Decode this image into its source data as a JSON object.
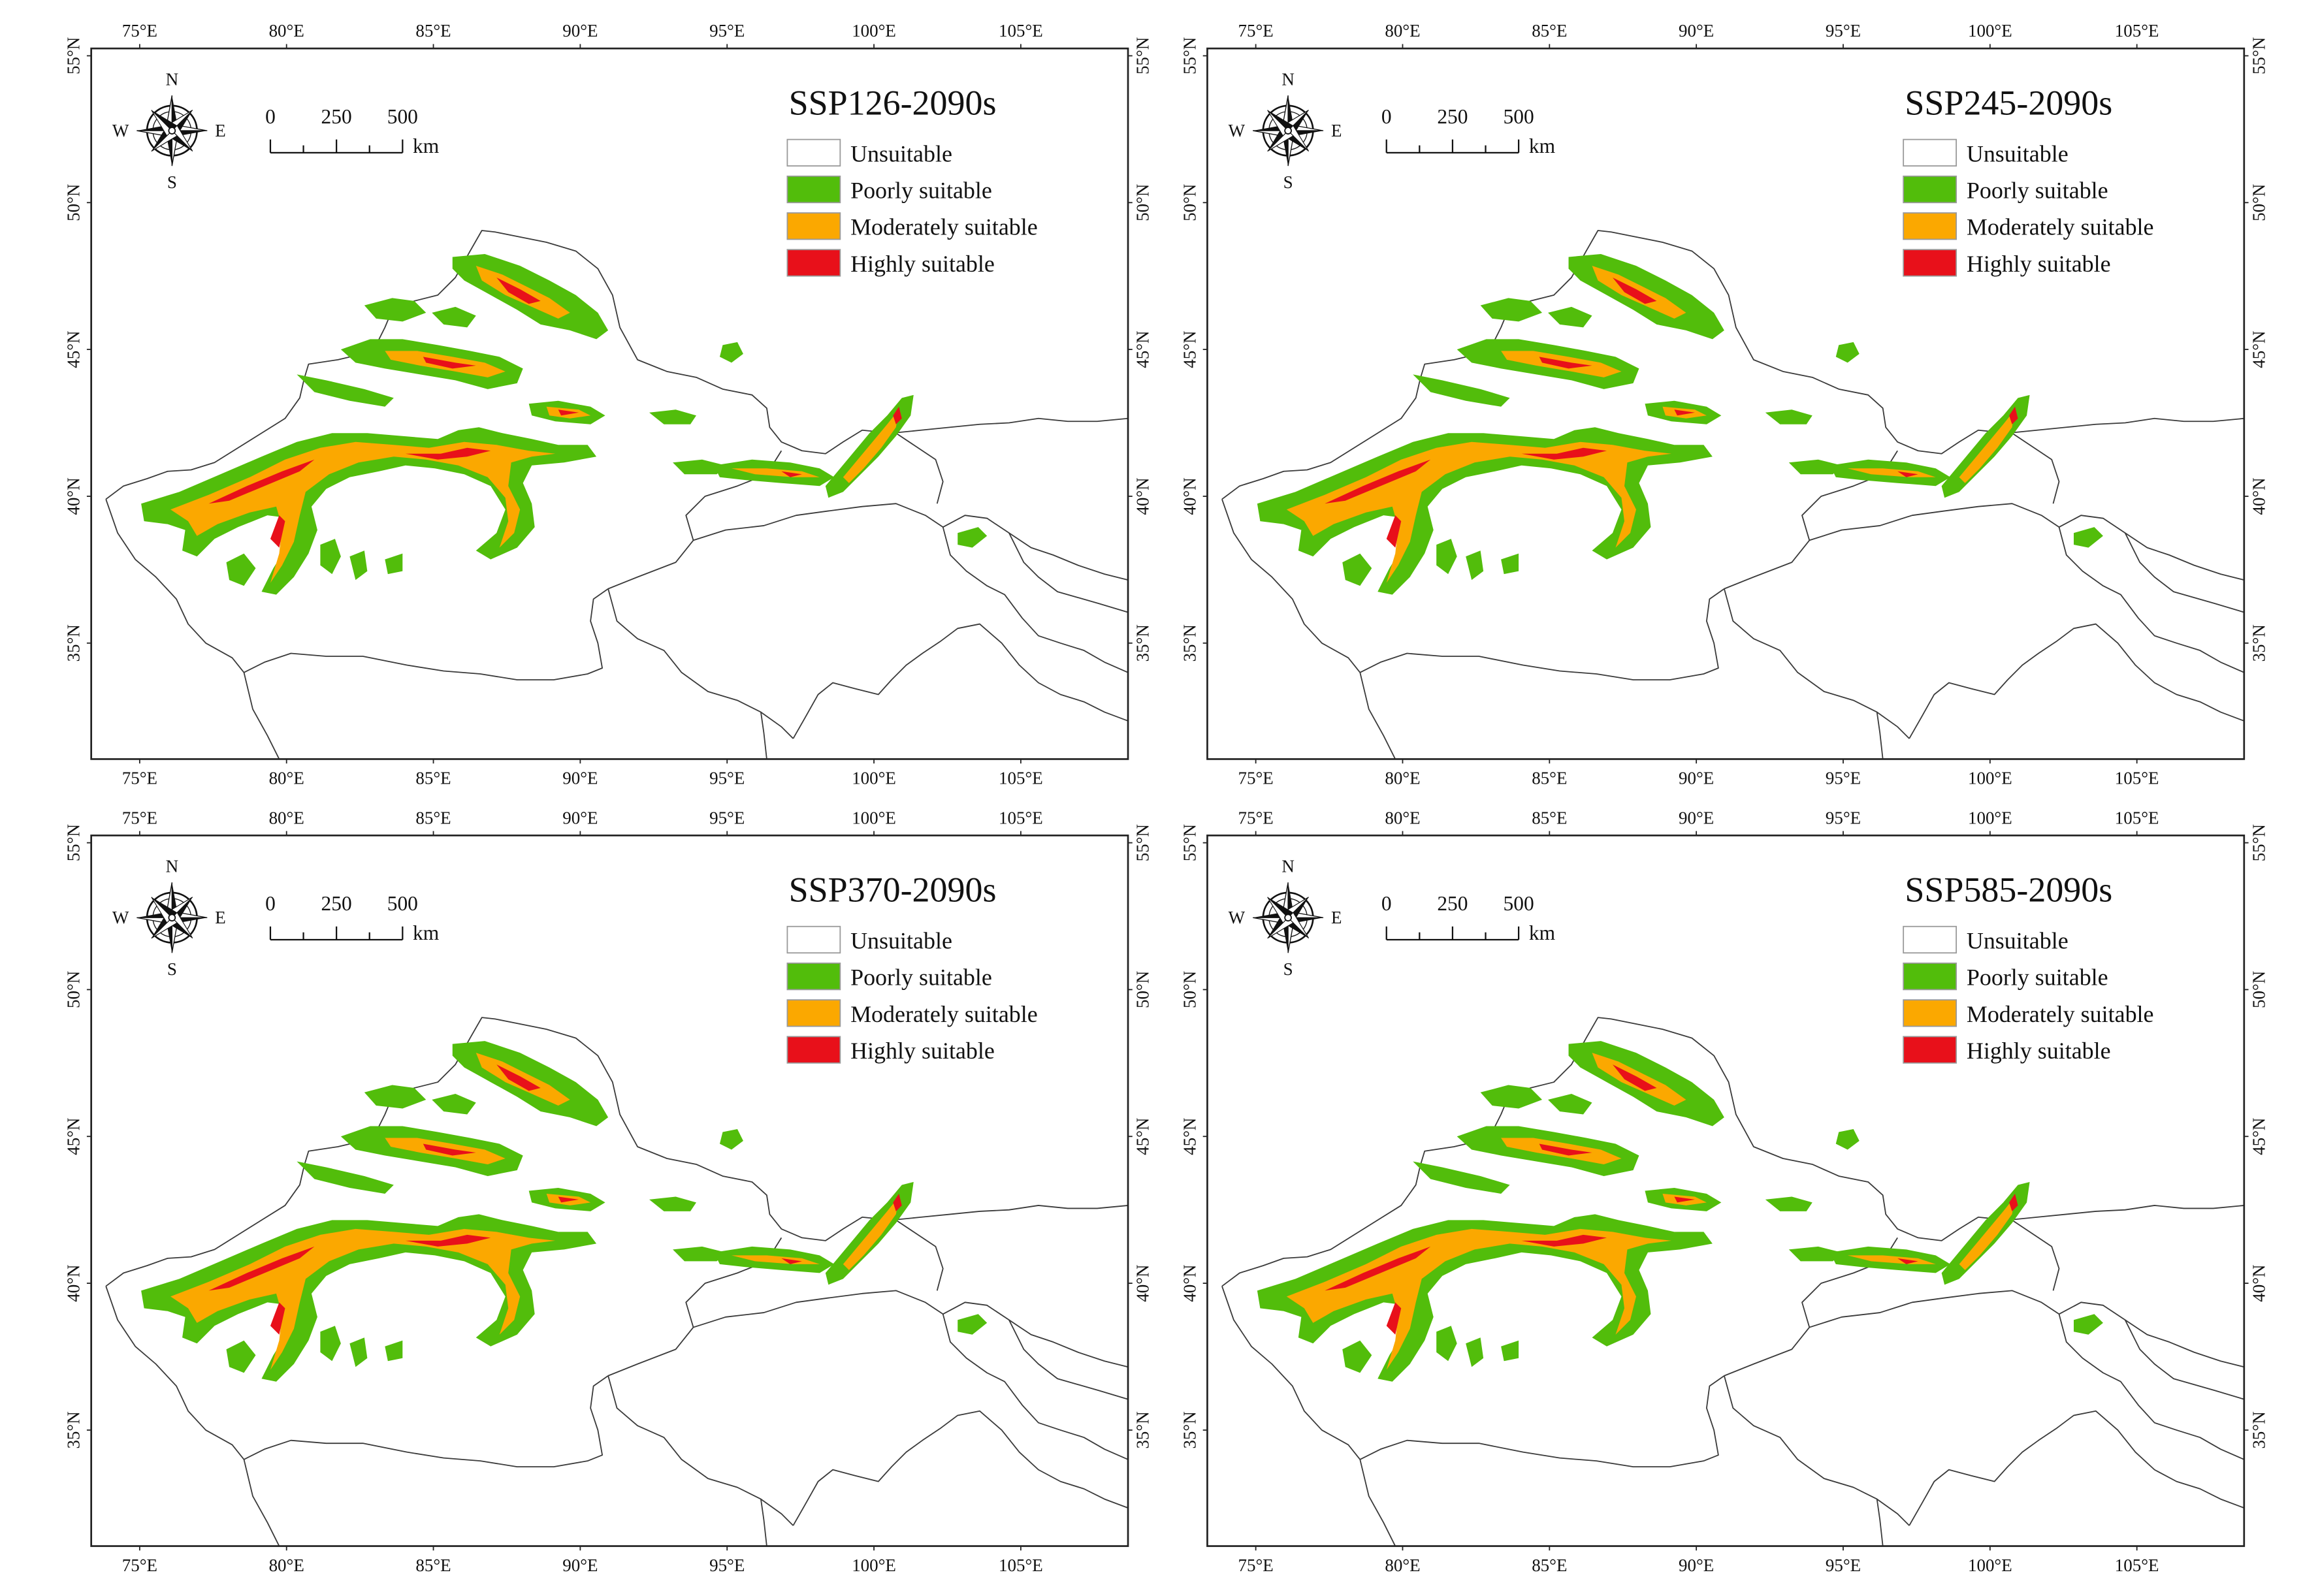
{
  "figure": {
    "longitude_ticks": [
      "75°E",
      "80°E",
      "85°E",
      "90°E",
      "95°E",
      "100°E",
      "105°E"
    ],
    "latitude_ticks": [
      "55°N",
      "50°N",
      "45°N",
      "40°N",
      "35°N"
    ],
    "compass": {
      "north": "N",
      "south": "S",
      "east": "E",
      "west": "W",
      "icon": "compass-rose-icon"
    },
    "scale_bar": {
      "labels": [
        "0",
        "250",
        "500"
      ],
      "unit": "km"
    },
    "legend": [
      {
        "label": "Unsuitable",
        "color": "#ffffff"
      },
      {
        "label": "Poorly suitable",
        "color": "#52bd0b"
      },
      {
        "label": "Moderately suitable",
        "color": "#fba800"
      },
      {
        "label": "Highly suitable",
        "color": "#e8101a"
      }
    ],
    "panels": [
      {
        "title": "SSP126-2090s"
      },
      {
        "title": "SSP245-2090s"
      },
      {
        "title": "SSP370-2090s"
      },
      {
        "title": "SSP585-2090s"
      }
    ]
  }
}
